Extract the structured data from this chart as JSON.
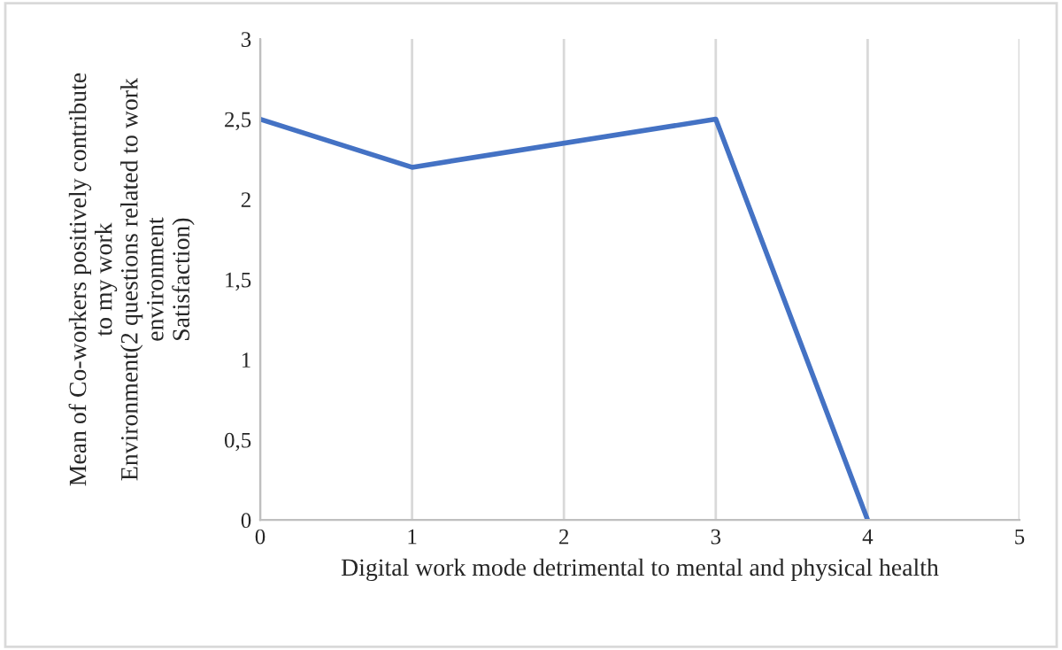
{
  "chart_data": {
    "type": "line",
    "xlabel": "Digital work mode detrimental to mental and physical health",
    "ylabel": "Mean of Co-workers positively contribute\nto my work\nEnvironment(2 questions related to work\nenvironment\nSatisfaction)",
    "x": [
      0,
      1,
      3,
      4
    ],
    "series": [
      {
        "color": "#4472c4",
        "values": [
          2.5,
          2.2,
          2.5,
          0
        ]
      }
    ],
    "xlim": [
      0,
      5
    ],
    "xticks": [
      0,
      1,
      2,
      3,
      4,
      5
    ],
    "ylim": [
      0,
      3
    ],
    "yticks": [
      0,
      {
        "value": 0.5,
        "label": "0,5"
      },
      1,
      {
        "value": 1.5,
        "label": "1,5"
      },
      2,
      {
        "value": 2.5,
        "label": "2,5"
      },
      3
    ],
    "grid": "x",
    "legend": false,
    "marker": "none",
    "line_style": "solid"
  }
}
